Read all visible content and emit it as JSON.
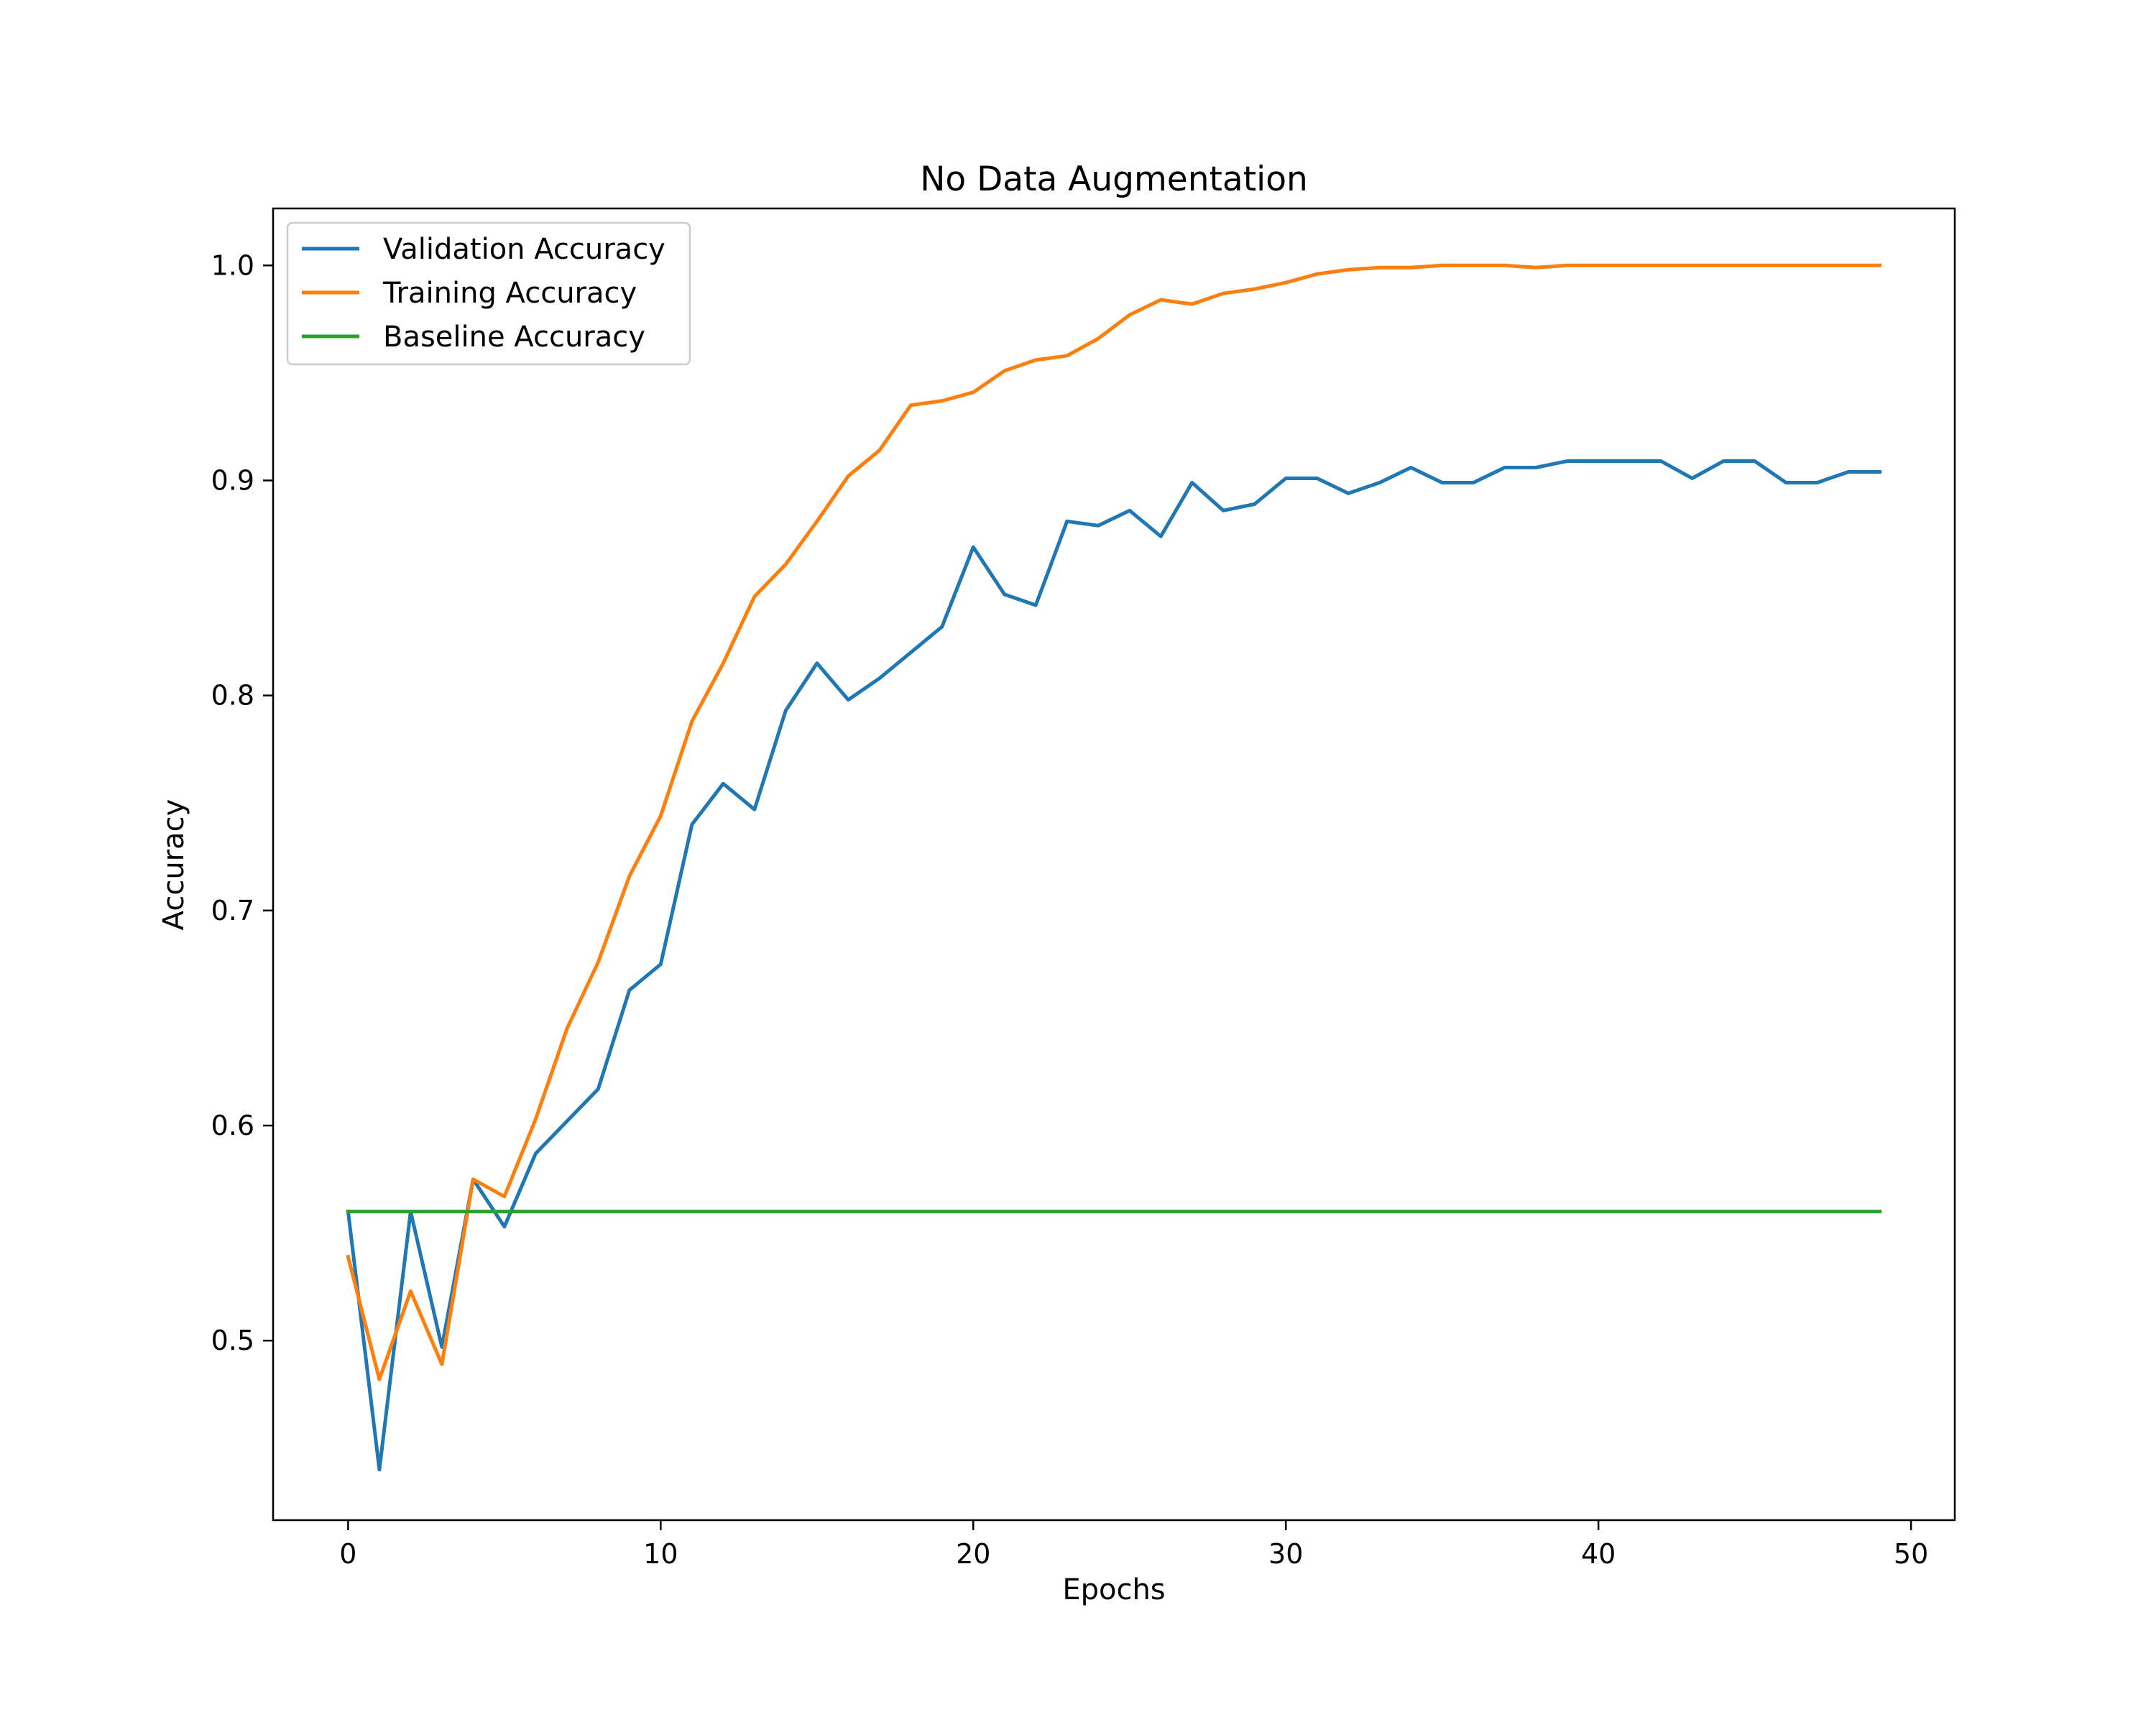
{
  "chart_data": {
    "type": "line",
    "title": "No Data Augmentation",
    "xlabel": "Epochs",
    "ylabel": "Accuracy",
    "xlim": [
      -2.4,
      51.4
    ],
    "ylim": [
      0.4165,
      1.0265
    ],
    "xticks": [
      0,
      10,
      20,
      30,
      40,
      50
    ],
    "yticks": [
      0.5,
      0.6,
      0.7,
      0.8,
      0.9,
      1.0
    ],
    "xtick_labels": [
      "0",
      "10",
      "20",
      "30",
      "40",
      "50"
    ],
    "ytick_labels": [
      "0.5",
      "0.6",
      "0.7",
      "0.8",
      "0.9",
      "1.0"
    ],
    "grid": false,
    "legend_position": "top-left",
    "x": [
      0,
      1,
      2,
      3,
      4,
      5,
      6,
      7,
      8,
      9,
      10,
      11,
      12,
      13,
      14,
      15,
      16,
      17,
      18,
      19,
      20,
      21,
      22,
      23,
      24,
      25,
      26,
      27,
      28,
      29,
      30,
      31,
      32,
      33,
      34,
      35,
      36,
      37,
      38,
      39,
      40,
      41,
      42,
      43,
      44,
      45,
      46,
      47,
      48,
      49
    ],
    "series": [
      {
        "name": "Validation Accuracy",
        "color": "#1f77b4",
        "values": [
          0.56,
          0.44,
          0.56,
          0.497,
          0.575,
          0.553,
          0.587,
          0.602,
          0.617,
          0.663,
          0.675,
          0.74,
          0.759,
          0.747,
          0.793,
          0.815,
          0.798,
          0.808,
          0.82,
          0.832,
          0.869,
          0.847,
          0.842,
          0.881,
          0.879,
          0.886,
          0.874,
          0.899,
          0.886,
          0.889,
          0.901,
          0.901,
          0.894,
          0.899,
          0.906,
          0.899,
          0.899,
          0.906,
          0.906,
          0.909,
          0.909,
          0.909,
          0.909,
          0.901,
          0.909,
          0.909,
          0.899,
          0.899,
          0.904,
          0.904
        ]
      },
      {
        "name": "Training Accuracy",
        "color": "#ff7f0e",
        "values": [
          0.539,
          0.482,
          0.523,
          0.489,
          0.575,
          0.567,
          0.603,
          0.645,
          0.676,
          0.716,
          0.744,
          0.788,
          0.815,
          0.846,
          0.861,
          0.881,
          0.902,
          0.914,
          0.935,
          0.937,
          0.941,
          0.951,
          0.956,
          0.958,
          0.966,
          0.977,
          0.984,
          0.982,
          0.987,
          0.989,
          0.992,
          0.996,
          0.998,
          0.999,
          0.999,
          1.0,
          1.0,
          1.0,
          0.999,
          1.0,
          1.0,
          1.0,
          1.0,
          1.0,
          1.0,
          1.0,
          1.0,
          1.0,
          1.0,
          1.0
        ]
      },
      {
        "name": "Baseline Accuracy",
        "color": "#2ca02c",
        "values": [
          0.56,
          0.56,
          0.56,
          0.56,
          0.56,
          0.56,
          0.56,
          0.56,
          0.56,
          0.56,
          0.56,
          0.56,
          0.56,
          0.56,
          0.56,
          0.56,
          0.56,
          0.56,
          0.56,
          0.56,
          0.56,
          0.56,
          0.56,
          0.56,
          0.56,
          0.56,
          0.56,
          0.56,
          0.56,
          0.56,
          0.56,
          0.56,
          0.56,
          0.56,
          0.56,
          0.56,
          0.56,
          0.56,
          0.56,
          0.56,
          0.56,
          0.56,
          0.56,
          0.56,
          0.56,
          0.56,
          0.56,
          0.56,
          0.56,
          0.56
        ]
      }
    ]
  }
}
